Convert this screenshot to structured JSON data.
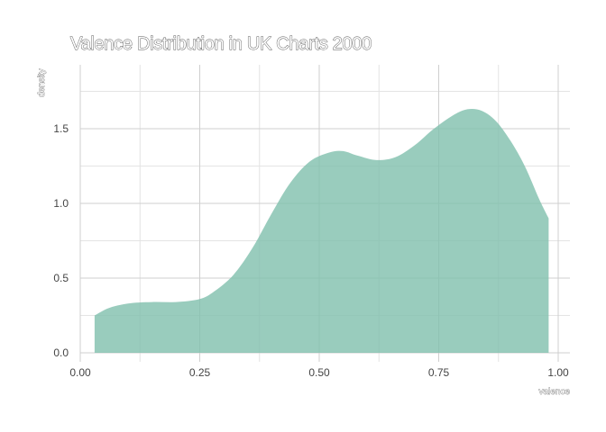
{
  "chart_data": {
    "type": "area",
    "title": "Valence Distribution in UK Charts 2000",
    "xlabel": "valence",
    "ylabel": "density",
    "xlim": [
      0.0,
      1.0
    ],
    "ylim": [
      0.0,
      1.8
    ],
    "x_ticks": [
      "0.00",
      "0.25",
      "0.50",
      "0.75",
      "1.00"
    ],
    "y_ticks": [
      "0.0",
      "0.5",
      "1.0",
      "1.5"
    ],
    "grid": true,
    "fill_color": "#7fbfad",
    "series": [
      {
        "x": [
          0.03,
          0.06,
          0.1,
          0.15,
          0.2,
          0.25,
          0.28,
          0.32,
          0.36,
          0.4,
          0.44,
          0.48,
          0.52,
          0.55,
          0.58,
          0.62,
          0.66,
          0.7,
          0.74,
          0.78,
          0.81,
          0.84,
          0.87,
          0.9,
          0.93,
          0.96,
          0.98
        ],
        "y": [
          0.25,
          0.3,
          0.33,
          0.34,
          0.34,
          0.36,
          0.41,
          0.52,
          0.7,
          0.93,
          1.14,
          1.28,
          1.34,
          1.35,
          1.32,
          1.29,
          1.31,
          1.39,
          1.5,
          1.59,
          1.63,
          1.62,
          1.55,
          1.42,
          1.25,
          1.03,
          0.9
        ]
      }
    ]
  }
}
